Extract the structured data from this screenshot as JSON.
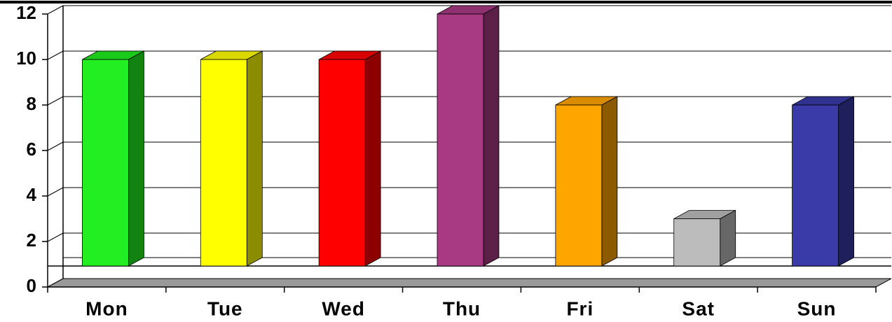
{
  "chart_data": {
    "type": "bar3d",
    "categories": [
      "Mon",
      "Tue",
      "Wed",
      "Thu",
      "Fri",
      "Sat",
      "Sun"
    ],
    "values": [
      10,
      10,
      10,
      12,
      8,
      3,
      8
    ],
    "colors": [
      "#22ee22",
      "#ffff00",
      "#ff0000",
      "#a83a84",
      "#ffa500",
      "#bcbcbc",
      "#3a3aa8"
    ],
    "ylim": [
      0,
      12
    ],
    "yticks": [
      0,
      2,
      4,
      6,
      8,
      10,
      12
    ],
    "grid": true
  }
}
